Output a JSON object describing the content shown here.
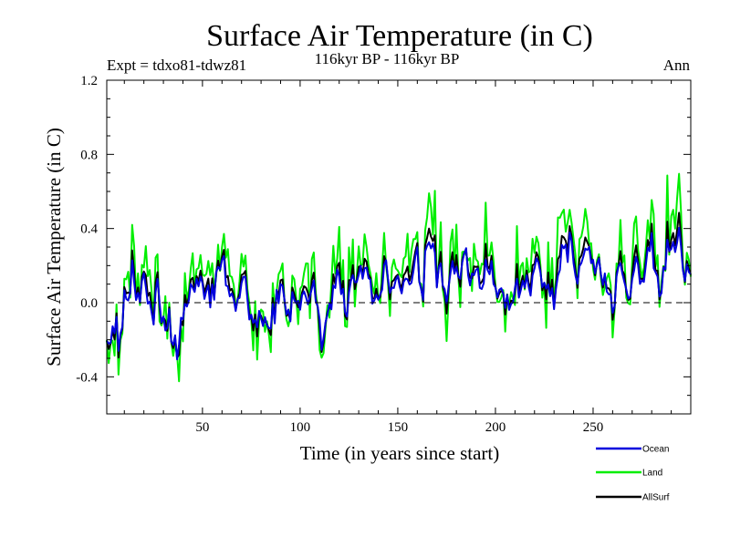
{
  "chart_data": {
    "type": "line",
    "title": "Surface Air Temperature (in C)",
    "experiment_label": "Expt = tdxo81-tdwz81",
    "period_label": "116kyr BP - 116kyr BP",
    "season_label": "Ann",
    "xlabel": "Time (in years since start)",
    "ylabel": "Surface Air Temperature (in C)",
    "xlim": [
      1,
      300
    ],
    "ylim": [
      -0.6,
      1.2
    ],
    "xticks": [
      50,
      100,
      150,
      200,
      250
    ],
    "yticks": [
      -0.4,
      0.0,
      0.4,
      0.8,
      1.2
    ],
    "xtick_labels": [
      "50",
      "100",
      "150",
      "200",
      "250"
    ],
    "ytick_labels": [
      "-0.4",
      "0.0",
      "0.4",
      "0.8",
      "1.2"
    ],
    "reference_line": 0.0,
    "legend_placement": "bottom-right",
    "series": [
      {
        "name": "Ocean",
        "color": "#0000dd"
      },
      {
        "name": "Land",
        "color": "#00ee00"
      },
      {
        "name": "AllSurf",
        "color": "#000000"
      }
    ]
  }
}
